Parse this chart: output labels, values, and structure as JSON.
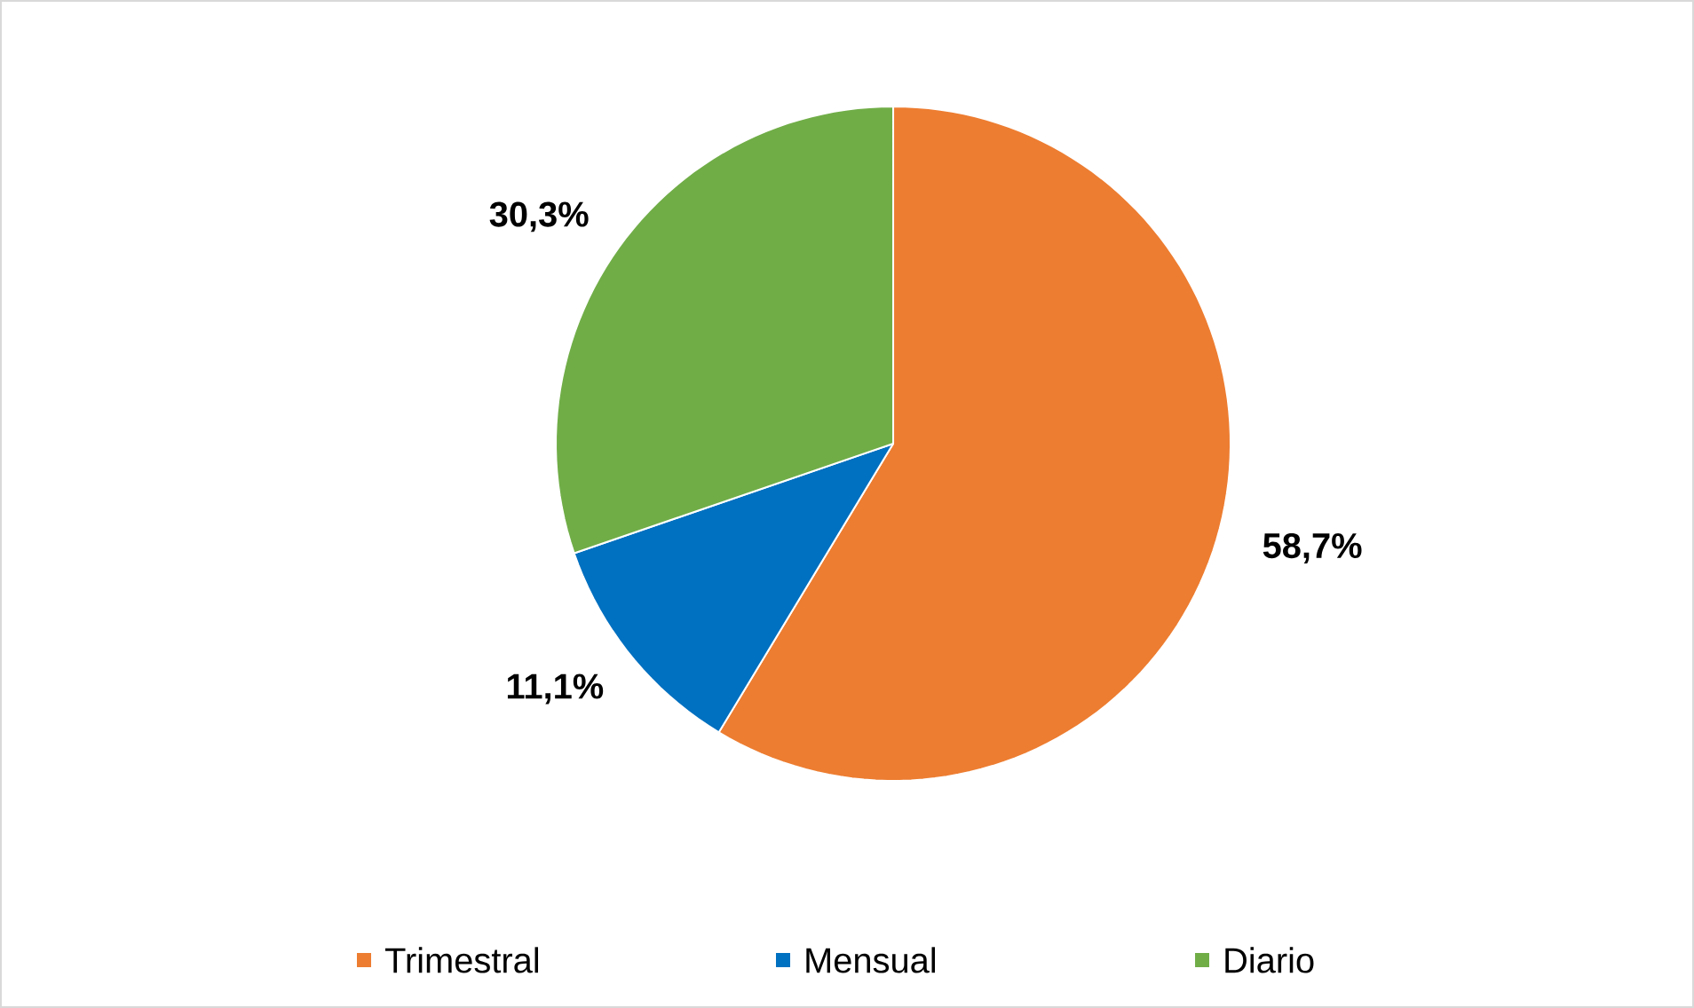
{
  "chart_data": {
    "type": "pie",
    "categories": [
      "Trimestral",
      "Mensual",
      "Diario"
    ],
    "values": [
      58.7,
      11.1,
      30.3
    ],
    "colors": [
      "#ed7d31",
      "#0070c0",
      "#70ad47"
    ],
    "value_labels": [
      "58,7%",
      "11,1%",
      "30,3%"
    ],
    "legend": "bottom"
  }
}
